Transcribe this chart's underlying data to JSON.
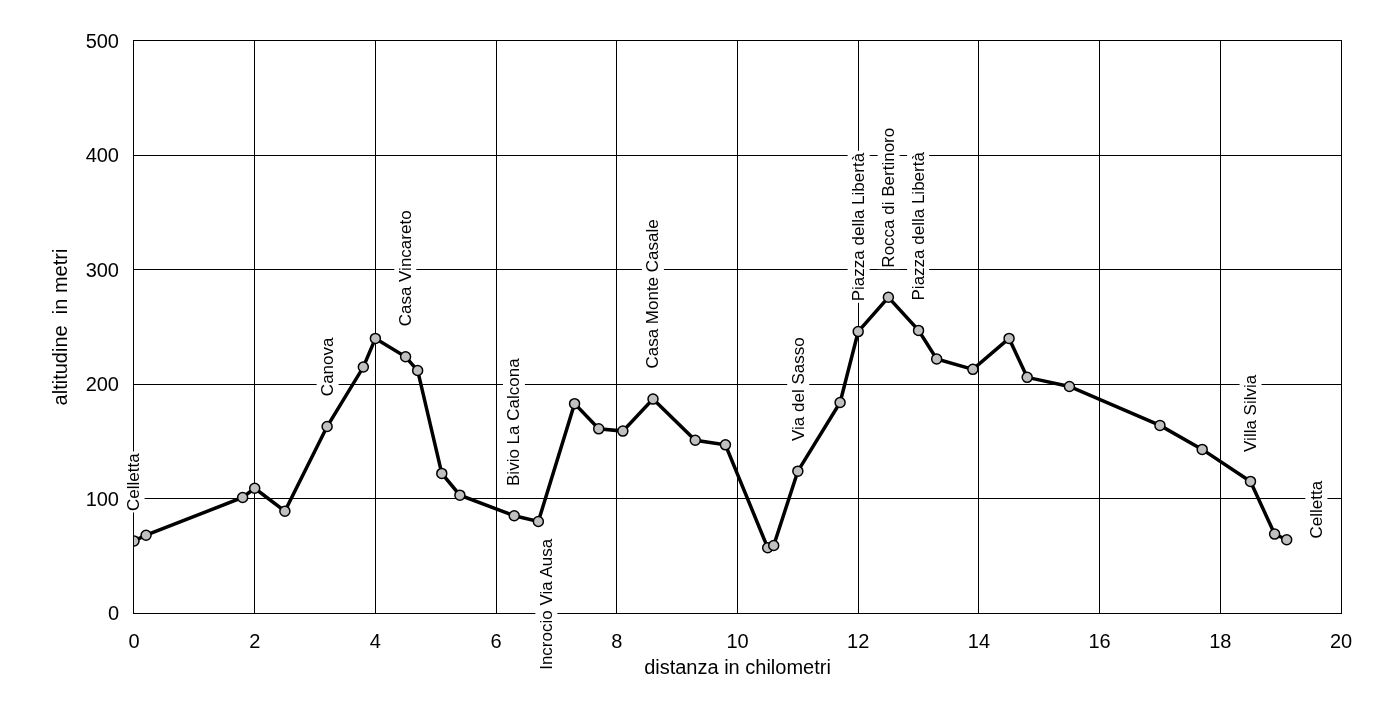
{
  "chart_data": {
    "type": "line",
    "xlabel": "distanza in chilometri",
    "ylabel": "altitudine  in metri",
    "x": [
      0,
      0.2,
      1.8,
      2.0,
      2.5,
      3.2,
      3.8,
      4.0,
      4.5,
      4.7,
      5.1,
      5.4,
      6.3,
      6.7,
      7.3,
      7.7,
      8.1,
      8.6,
      9.3,
      9.8,
      10.5,
      10.6,
      11.0,
      11.7,
      12.0,
      12.5,
      13.0,
      13.3,
      13.9,
      14.5,
      14.8,
      15.5,
      17.0,
      17.7,
      18.5,
      18.9,
      19.1
    ],
    "series": [
      {
        "color": "#000000",
        "values": [
          63,
          68,
          101,
          109,
          89,
          163,
          215,
          240,
          224,
          212,
          122,
          103,
          85,
          80,
          183,
          161,
          159,
          187,
          151,
          147,
          57,
          59,
          124,
          184,
          246,
          276,
          247,
          222,
          213,
          240,
          206,
          198,
          164,
          143,
          115,
          69,
          64
        ]
      }
    ],
    "marker": "circle",
    "line_style": "solid",
    "grid": true,
    "xlim": [
      0,
      20
    ],
    "xticks": [
      0,
      2,
      4,
      6,
      8,
      10,
      12,
      14,
      16,
      18,
      20
    ],
    "ylim": [
      0,
      500
    ],
    "yticks": [
      0,
      100,
      200,
      300,
      400,
      500
    ],
    "annotations": [
      {
        "text": "Celletta",
        "x": 0,
        "y": 63
      },
      {
        "text": "Canova",
        "x": 3.2,
        "y": 163
      },
      {
        "text": "Casa Vincareto",
        "x": 4.5,
        "y": 224
      },
      {
        "text": "Bivio La Calcona",
        "x": 6.3,
        "y": 85
      },
      {
        "text": "Incrocio Via Ausa",
        "x": 6.7,
        "y": 80
      },
      {
        "text": "Casa Monte Casale",
        "x": 8.6,
        "y": 187
      },
      {
        "text": "Via del Sasso",
        "x": 11.0,
        "y": 124
      },
      {
        "text": "Piazza della Libertà",
        "x": 12.0,
        "y": 246
      },
      {
        "text": "Rocca di Bertinoro",
        "x": 12.5,
        "y": 276
      },
      {
        "text": "Piazza della Libertà",
        "x": 13.0,
        "y": 247
      },
      {
        "text": "Villa Silvia",
        "x": 18.5,
        "y": 115
      },
      {
        "text": "Celletta",
        "x": 19.1,
        "y": 64
      }
    ]
  }
}
